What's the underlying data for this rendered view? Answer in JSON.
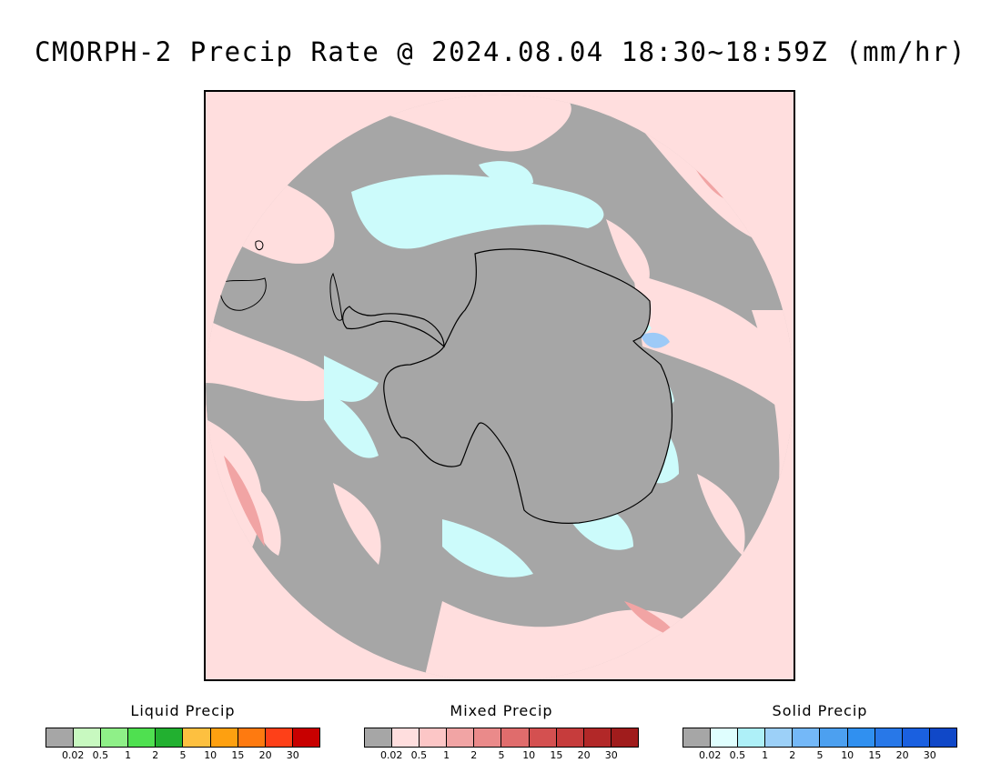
{
  "title": "CMORPH-2 Precip Rate @ 2024.08.04 18:30~18:59Z (mm/hr)",
  "map": {
    "projection": "south-polar-stereographic",
    "colors": {
      "ocean_no_precip": "#a6a6a6",
      "mixed_light": "#ffdede",
      "solid_light": "#ccfbfb",
      "solid_medium": "#9dcaf7",
      "mixed_medium": "#f1a4a4",
      "coastline": "#000000"
    }
  },
  "legends": [
    {
      "id": "liquid",
      "title": "Liquid Precip",
      "colors": [
        "#a6a6a6",
        "#c8f9c0",
        "#8ff088",
        "#4fe050",
        "#22b030",
        "#fdc040",
        "#fea010",
        "#fe7a10",
        "#fe4018",
        "#c80000"
      ],
      "ticks": [
        "0.02",
        "0.5",
        "1",
        "2",
        "5",
        "10",
        "15",
        "20",
        "30"
      ]
    },
    {
      "id": "mixed",
      "title": "Mixed Precip",
      "colors": [
        "#a6a6a6",
        "#ffdede",
        "#fcc6c6",
        "#f1a4a4",
        "#ea8a8a",
        "#e06c6c",
        "#d45050",
        "#c63c3c",
        "#b22828",
        "#a01c1c"
      ],
      "ticks": [
        "0.02",
        "0.5",
        "1",
        "2",
        "5",
        "10",
        "15",
        "20",
        "30"
      ]
    },
    {
      "id": "solid",
      "title": "Solid Precip",
      "colors": [
        "#a6a6a6",
        "#dffefe",
        "#aef0f8",
        "#9cd0f8",
        "#74b8f8",
        "#4ca0f0",
        "#3090f0",
        "#2878e8",
        "#1a60e0",
        "#1048c8"
      ],
      "ticks": [
        "0.02",
        "0.5",
        "1",
        "2",
        "5",
        "10",
        "15",
        "20",
        "30"
      ]
    }
  ]
}
